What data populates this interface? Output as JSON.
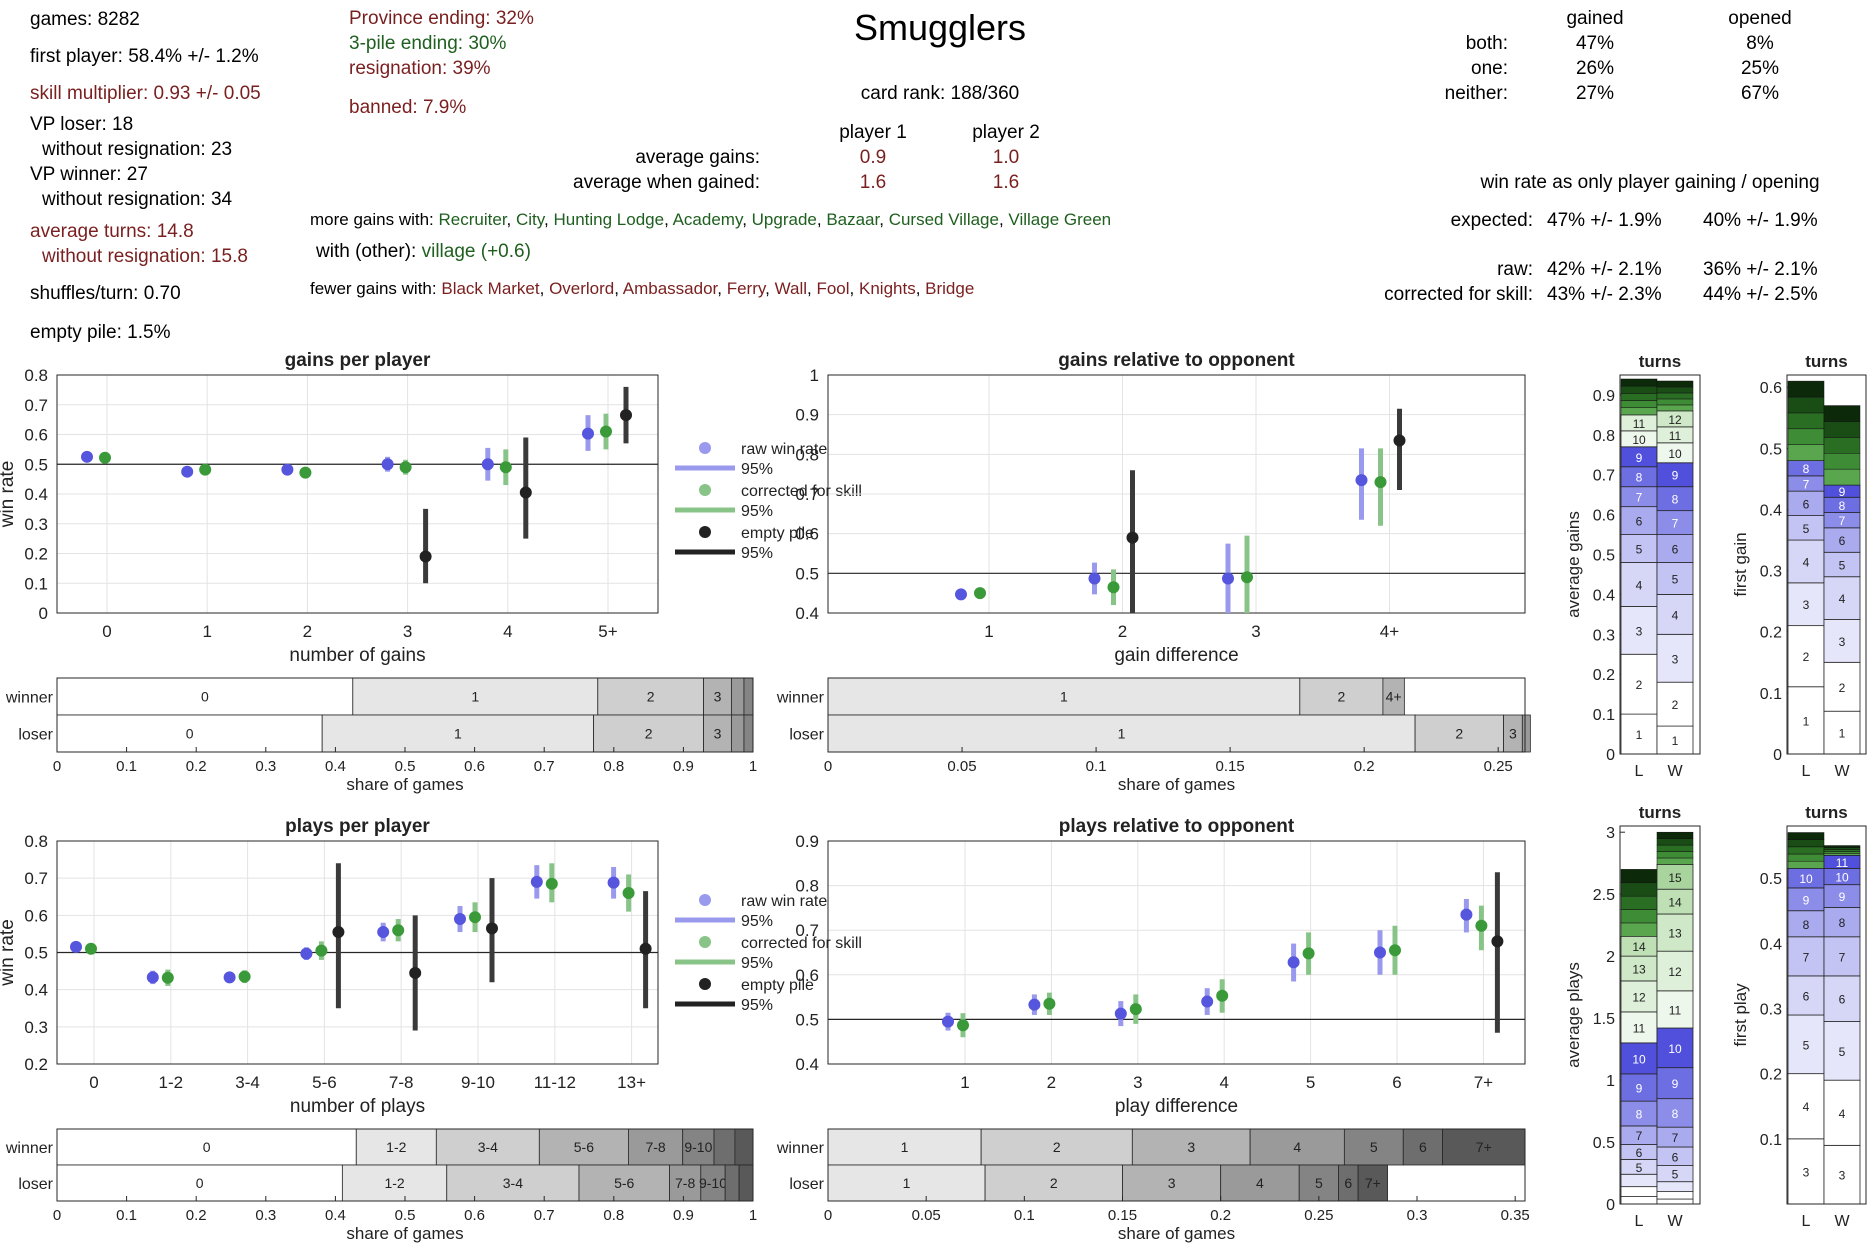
{
  "page_title": "Smugglers",
  "left_stats": {
    "games": "games: 8282",
    "first_player": "first player: 58.4% +/- 1.2%",
    "skill": "skill multiplier: 0.93 +/- 0.05",
    "vp_loser": "VP loser: 18",
    "vp_loser_nr": "without resignation: 23",
    "vp_winner": "VP winner: 27",
    "vp_winner_nr": "without resignation: 34",
    "turns": "average turns: 14.8",
    "turns_nr": "without resignation: 15.8",
    "shuffles": "shuffles/turn: 0.70",
    "empty_pile": "empty pile: 1.5%"
  },
  "endings": {
    "province": "Province ending: 32%",
    "pile3": "3-pile ending: 30%",
    "resign": "resignation: 39%",
    "banned": "banned: 7.9%"
  },
  "center": {
    "card_rank": "card rank: 188/360",
    "p1": "player 1",
    "p2": "player 2",
    "avg_gains_label": "average gains:",
    "avg_gains_p1": "0.9",
    "avg_gains_p2": "1.0",
    "avg_when_label": "average when gained:",
    "avg_when_p1": "1.6",
    "avg_when_p2": "1.6",
    "more_label": "more gains with:",
    "more_cards": [
      "Recruiter",
      "City",
      "Hunting Lodge",
      "Academy",
      "Upgrade",
      "Bazaar",
      "Cursed Village",
      "Village Green"
    ],
    "other_label": "with (other):",
    "other_value": "village (+0.6)",
    "fewer_label": "fewer gains with:",
    "fewer_cards": [
      "Black Market",
      "Overlord",
      "Ambassador",
      "Ferry",
      "Wall",
      "Fool",
      "Knights",
      "Bridge"
    ]
  },
  "right_stats": {
    "h_gained": "gained",
    "h_opened": "opened",
    "both_label": "both:",
    "both_g": "47%",
    "both_o": "8%",
    "one_label": "one:",
    "one_g": "26%",
    "one_o": "25%",
    "neither_label": "neither:",
    "neither_g": "27%",
    "neither_o": "67%",
    "winrate_title": "win rate as only player gaining / opening",
    "expected_label": "expected:",
    "expected_g": "47% +/- 1.9%",
    "expected_o": "40% +/- 1.9%",
    "raw_label": "raw:",
    "raw_g": "42% +/- 2.1%",
    "raw_o": "36% +/- 2.1%",
    "corr_label": "corrected for skill:",
    "corr_g": "43% +/- 2.3%",
    "corr_o": "44% +/- 2.5%"
  },
  "colors": {
    "raw": "#5555dd",
    "corrected": "#3a9a3a",
    "empty": "#222222",
    "raw_ci": "#9999ee",
    "corr_ci": "#88c488",
    "text_red": "#7a1f1f",
    "text_green": "#1f5f1f"
  },
  "legend": [
    "raw win rate",
    "95%",
    "corrected for skill",
    "95%",
    "empty pile",
    "95%"
  ],
  "chart_data": [
    {
      "id": "gains_per_player",
      "type": "scatter",
      "title": "gains per player",
      "xlabel": "number of gains",
      "ylabel": "win rate",
      "ylim": [
        0,
        0.8
      ],
      "yticks": [
        0,
        0.1,
        0.2,
        0.3,
        0.4,
        0.5,
        0.6,
        0.7,
        0.8
      ],
      "categories": [
        "0",
        "1",
        "2",
        "3",
        "4",
        "5+"
      ],
      "refline": 0.5,
      "series": [
        {
          "name": "raw win rate",
          "values": [
            0.525,
            0.475,
            0.482,
            0.5,
            0.5,
            0.603
          ],
          "lo": [
            0.515,
            0.465,
            0.47,
            0.475,
            0.445,
            0.545
          ],
          "hi": [
            0.535,
            0.485,
            0.494,
            0.525,
            0.555,
            0.665
          ]
        },
        {
          "name": "corrected for skill",
          "values": [
            0.522,
            0.482,
            0.472,
            0.49,
            0.49,
            0.61
          ],
          "lo": [
            0.51,
            0.472,
            0.46,
            0.465,
            0.43,
            0.55
          ],
          "hi": [
            0.534,
            0.492,
            0.484,
            0.515,
            0.55,
            0.67
          ]
        },
        {
          "name": "empty pile",
          "values": [
            null,
            null,
            null,
            0.19,
            0.405,
            0.665
          ],
          "lo": [
            null,
            null,
            null,
            0.1,
            0.25,
            0.57
          ],
          "hi": [
            null,
            null,
            null,
            0.35,
            0.59,
            0.76
          ]
        }
      ]
    },
    {
      "id": "gains_relative",
      "type": "scatter",
      "title": "gains relative to opponent",
      "xlabel": "gain difference",
      "ylabel": "",
      "ylim": [
        0.4,
        1
      ],
      "yticks": [
        0.4,
        0.5,
        0.6,
        0.7,
        0.8,
        0.9,
        1
      ],
      "categories": [
        "1",
        "2",
        "3",
        "4+"
      ],
      "refline": 0.5,
      "series": [
        {
          "name": "raw win rate",
          "values": [
            0.447,
            0.487,
            0.487,
            0.735
          ],
          "lo": [
            0.437,
            0.447,
            0.4,
            0.635
          ],
          "hi": [
            0.457,
            0.527,
            0.575,
            0.815
          ]
        },
        {
          "name": "corrected for skill",
          "values": [
            0.45,
            0.465,
            0.49,
            0.73
          ],
          "lo": [
            0.438,
            0.42,
            0.4,
            0.62
          ],
          "hi": [
            0.462,
            0.51,
            0.595,
            0.815
          ]
        },
        {
          "name": "empty pile",
          "values": [
            null,
            0.59,
            null,
            0.835
          ],
          "lo": [
            null,
            0.4,
            null,
            0.71
          ],
          "hi": [
            null,
            0.76,
            null,
            0.915
          ]
        }
      ]
    },
    {
      "id": "plays_per_player",
      "type": "scatter",
      "title": "plays per player",
      "xlabel": "number of plays",
      "ylabel": "win rate",
      "ylim": [
        0.2,
        0.8
      ],
      "yticks": [
        0.2,
        0.3,
        0.4,
        0.5,
        0.6,
        0.7,
        0.8
      ],
      "categories": [
        "0",
        "1-2",
        "3-4",
        "5-6",
        "7-8",
        "9-10",
        "11-12",
        "13+"
      ],
      "refline": 0.5,
      "series": [
        {
          "name": "raw win rate",
          "values": [
            0.515,
            0.433,
            0.433,
            0.497,
            0.555,
            0.59,
            0.69,
            0.688
          ],
          "lo": [
            0.505,
            0.415,
            0.42,
            0.48,
            0.53,
            0.555,
            0.645,
            0.645
          ],
          "hi": [
            0.525,
            0.451,
            0.446,
            0.514,
            0.58,
            0.625,
            0.735,
            0.73
          ]
        },
        {
          "name": "corrected for skill",
          "values": [
            0.51,
            0.432,
            0.435,
            0.505,
            0.56,
            0.595,
            0.685,
            0.66
          ],
          "lo": [
            0.498,
            0.41,
            0.418,
            0.48,
            0.53,
            0.555,
            0.635,
            0.61
          ],
          "hi": [
            0.522,
            0.454,
            0.452,
            0.53,
            0.59,
            0.635,
            0.74,
            0.71
          ]
        },
        {
          "name": "empty pile",
          "values": [
            null,
            null,
            null,
            0.555,
            0.445,
            0.565,
            null,
            0.51
          ],
          "lo": [
            null,
            null,
            null,
            0.35,
            0.29,
            0.42,
            null,
            0.35
          ],
          "hi": [
            null,
            null,
            null,
            0.74,
            0.6,
            0.7,
            null,
            0.665
          ]
        }
      ]
    },
    {
      "id": "plays_relative",
      "type": "scatter",
      "title": "plays relative to opponent",
      "xlabel": "play difference",
      "ylabel": "",
      "ylim": [
        0.4,
        0.9
      ],
      "yticks": [
        0.4,
        0.5,
        0.6,
        0.7,
        0.8,
        0.9
      ],
      "categories": [
        "1",
        "2",
        "3",
        "4",
        "5",
        "6",
        "7+"
      ],
      "refline": 0.5,
      "series": [
        {
          "name": "raw win rate",
          "values": [
            0.495,
            0.533,
            0.513,
            0.54,
            0.628,
            0.65,
            0.735
          ],
          "lo": [
            0.475,
            0.51,
            0.485,
            0.51,
            0.585,
            0.6,
            0.695
          ],
          "hi": [
            0.515,
            0.556,
            0.541,
            0.57,
            0.67,
            0.7,
            0.77
          ]
        },
        {
          "name": "corrected for skill",
          "values": [
            0.487,
            0.535,
            0.523,
            0.553,
            0.648,
            0.655,
            0.71
          ],
          "lo": [
            0.46,
            0.51,
            0.49,
            0.515,
            0.6,
            0.6,
            0.655
          ],
          "hi": [
            0.514,
            0.56,
            0.556,
            0.59,
            0.695,
            0.71,
            0.755
          ]
        },
        {
          "name": "empty pile",
          "values": [
            null,
            null,
            null,
            null,
            null,
            null,
            0.675
          ],
          "lo": [
            null,
            null,
            null,
            null,
            null,
            null,
            0.47
          ],
          "hi": [
            null,
            null,
            null,
            null,
            null,
            null,
            0.83
          ]
        }
      ]
    },
    {
      "id": "gains_share",
      "type": "bar",
      "xlabel": "share of games",
      "xlim": [
        0,
        1
      ],
      "xticks": [
        0,
        0.1,
        0.2,
        0.3,
        0.4,
        0.5,
        0.6,
        0.7,
        0.8,
        0.9,
        1
      ],
      "rows": [
        {
          "name": "winner",
          "labels": [
            "0",
            "1",
            "2",
            "3",
            "",
            ""
          ],
          "values": [
            0.425,
            0.352,
            0.152,
            0.04,
            0.018,
            0.013
          ]
        },
        {
          "name": "loser",
          "labels": [
            "0",
            "1",
            "2",
            "3",
            "",
            ""
          ],
          "values": [
            0.381,
            0.39,
            0.158,
            0.04,
            0.018,
            0.013
          ]
        }
      ]
    },
    {
      "id": "gains_rel_share",
      "type": "bar",
      "xlabel": "share of games",
      "xlim": [
        0,
        0.26
      ],
      "xticks": [
        0,
        0.05,
        0.1,
        0.15,
        0.2,
        0.25
      ],
      "rows": [
        {
          "name": "winner",
          "labels": [
            "1",
            "2",
            "4+"
          ],
          "values": [
            0.176,
            0.031,
            0.008
          ]
        },
        {
          "name": "loser",
          "labels": [
            "1",
            "2",
            "3",
            ""
          ],
          "values": [
            0.219,
            0.033,
            0.007,
            0.003
          ]
        }
      ]
    },
    {
      "id": "plays_share",
      "type": "bar",
      "xlabel": "share of games",
      "xlim": [
        0,
        1
      ],
      "xticks": [
        0,
        0.1,
        0.2,
        0.3,
        0.4,
        0.5,
        0.6,
        0.7,
        0.8,
        0.9,
        1
      ],
      "rows": [
        {
          "name": "winner",
          "labels": [
            "0",
            "1-2",
            "3-4",
            "5-6",
            "7-8",
            "9-10",
            "",
            ""
          ],
          "values": [
            0.43,
            0.115,
            0.148,
            0.128,
            0.078,
            0.045,
            0.03,
            0.026
          ]
        },
        {
          "name": "loser",
          "labels": [
            "0",
            "1-2",
            "3-4",
            "5-6",
            "7-8",
            "9-10",
            "",
            ""
          ],
          "values": [
            0.41,
            0.15,
            0.19,
            0.13,
            0.045,
            0.035,
            0.02,
            0.02
          ]
        }
      ]
    },
    {
      "id": "plays_rel_share",
      "type": "bar",
      "xlabel": "share of games",
      "xlim": [
        0,
        0.355
      ],
      "xticks": [
        0,
        0.05,
        0.1,
        0.15,
        0.2,
        0.25,
        0.3,
        0.35
      ],
      "rows": [
        {
          "name": "winner",
          "labels": [
            "1",
            "2",
            "3",
            "4",
            "5",
            "6",
            "7+"
          ],
          "values": [
            0.078,
            0.077,
            0.06,
            0.048,
            0.03,
            0.02,
            0.042
          ]
        },
        {
          "name": "loser",
          "labels": [
            "1",
            "2",
            "3",
            "4",
            "5",
            "6",
            "7+"
          ],
          "values": [
            0.08,
            0.07,
            0.05,
            0.04,
            0.02,
            0.01,
            0.015
          ]
        }
      ]
    },
    {
      "id": "turns_avg_gains",
      "type": "bar",
      "title": "turns",
      "ylabel": "average gains",
      "ylim": [
        0,
        0.95
      ],
      "yticks": [
        0,
        0.1,
        0.2,
        0.3,
        0.4,
        0.5,
        0.6,
        0.7,
        0.8,
        0.9
      ],
      "categories": [
        "L",
        "W"
      ],
      "stacks": [
        {
          "labels": [
            "1",
            "2",
            "3",
            "4",
            "5",
            "6",
            "7",
            "8",
            "9",
            "10",
            "11"
          ],
          "values": [
            0.1,
            0.15,
            0.12,
            0.11,
            0.07,
            0.07,
            0.05,
            0.05,
            0.05,
            0.04,
            0.04
          ],
          "top": 0.94
        },
        {
          "labels": [
            "1",
            "2",
            "3",
            "4",
            "5",
            "6",
            "7",
            "8",
            "9",
            "10",
            "11",
            "12"
          ],
          "values": [
            0.07,
            0.11,
            0.12,
            0.1,
            0.08,
            0.07,
            0.06,
            0.06,
            0.06,
            0.05,
            0.04,
            0.04
          ],
          "top": 0.935
        }
      ]
    },
    {
      "id": "turns_first_gain",
      "type": "bar",
      "title": "turns",
      "ylabel": "first gain",
      "ylim": [
        0,
        0.62
      ],
      "yticks": [
        0,
        0.1,
        0.2,
        0.3,
        0.4,
        0.5,
        0.6
      ],
      "categories": [
        "L",
        "W"
      ],
      "stacks": [
        {
          "labels": [
            "1",
            "2",
            "3",
            "4",
            "5",
            "6",
            "7",
            "8"
          ],
          "values": [
            0.11,
            0.1,
            0.07,
            0.07,
            0.04,
            0.04,
            0.025,
            0.025
          ],
          "top": 0.61
        },
        {
          "labels": [
            "1",
            "2",
            "3",
            "4",
            "5",
            "6",
            "7",
            "8",
            "9"
          ],
          "values": [
            0.07,
            0.08,
            0.07,
            0.07,
            0.04,
            0.04,
            0.025,
            0.025,
            0.02
          ],
          "top": 0.57
        }
      ]
    },
    {
      "id": "turns_avg_plays",
      "type": "bar",
      "title": "turns",
      "ylabel": "average plays",
      "ylim": [
        0,
        3.05
      ],
      "yticks": [
        0,
        0.5,
        1,
        1.5,
        2,
        2.5,
        3
      ],
      "categories": [
        "L",
        "W"
      ],
      "stacks": [
        {
          "labels": [
            "",
            "",
            "",
            "5",
            "6",
            "7",
            "8",
            "9",
            "10",
            "11",
            "12",
            "13",
            "14"
          ],
          "values": [
            0.06,
            0.08,
            0.1,
            0.12,
            0.12,
            0.15,
            0.2,
            0.22,
            0.25,
            0.25,
            0.25,
            0.2,
            0.16
          ],
          "top": 2.7
        },
        {
          "labels": [
            "",
            "",
            "",
            "5",
            "6",
            "7",
            "8",
            "9",
            "10",
            "11",
            "12",
            "13",
            "14",
            "15"
          ],
          "values": [
            0.04,
            0.06,
            0.08,
            0.13,
            0.15,
            0.16,
            0.23,
            0.25,
            0.32,
            0.3,
            0.32,
            0.3,
            0.2,
            0.2
          ],
          "top": 3.0
        }
      ]
    },
    {
      "id": "turns_first_play",
      "type": "bar",
      "title": "turns",
      "ylabel": "first play",
      "ylim": [
        0,
        0.58
      ],
      "yticks": [
        0.1,
        0.2,
        0.3,
        0.4,
        0.5
      ],
      "categories": [
        "L",
        "W"
      ],
      "stacks": [
        {
          "labels": [
            "3",
            "4",
            "5",
            "6",
            "7",
            "8",
            "9",
            "10"
          ],
          "values": [
            0.1,
            0.1,
            0.09,
            0.06,
            0.06,
            0.04,
            0.035,
            0.03
          ],
          "top": 0.57
        },
        {
          "labels": [
            "3",
            "4",
            "5",
            "6",
            "7",
            "8",
            "9",
            "10",
            "11"
          ],
          "values": [
            0.09,
            0.1,
            0.09,
            0.07,
            0.06,
            0.045,
            0.035,
            0.025,
            0.02
          ],
          "top": 0.55
        }
      ]
    }
  ]
}
